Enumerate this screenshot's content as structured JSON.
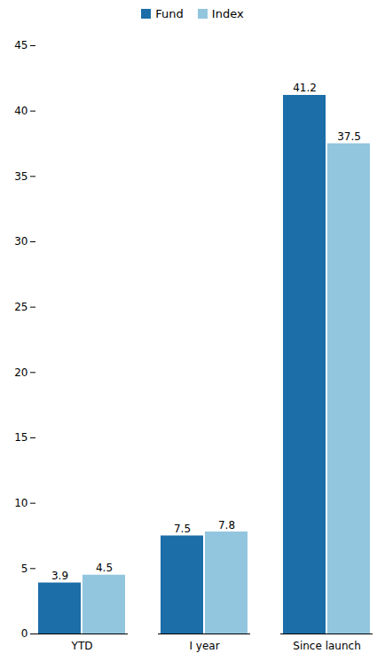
{
  "chart_data": {
    "type": "bar",
    "categories": [
      "YTD",
      "I year",
      "Since launch"
    ],
    "series": [
      {
        "name": "Fund",
        "color": "#1B6EA8",
        "values": [
          3.9,
          7.5,
          41.2
        ]
      },
      {
        "name": "Index",
        "color": "#92C5DE",
        "values": [
          4.5,
          7.8,
          37.5
        ]
      }
    ],
    "ylim": [
      0,
      45
    ],
    "yticks": [
      0,
      5,
      10,
      15,
      20,
      25,
      30,
      35,
      40,
      45
    ],
    "grid": false,
    "legend": "top",
    "data_labels": true
  }
}
